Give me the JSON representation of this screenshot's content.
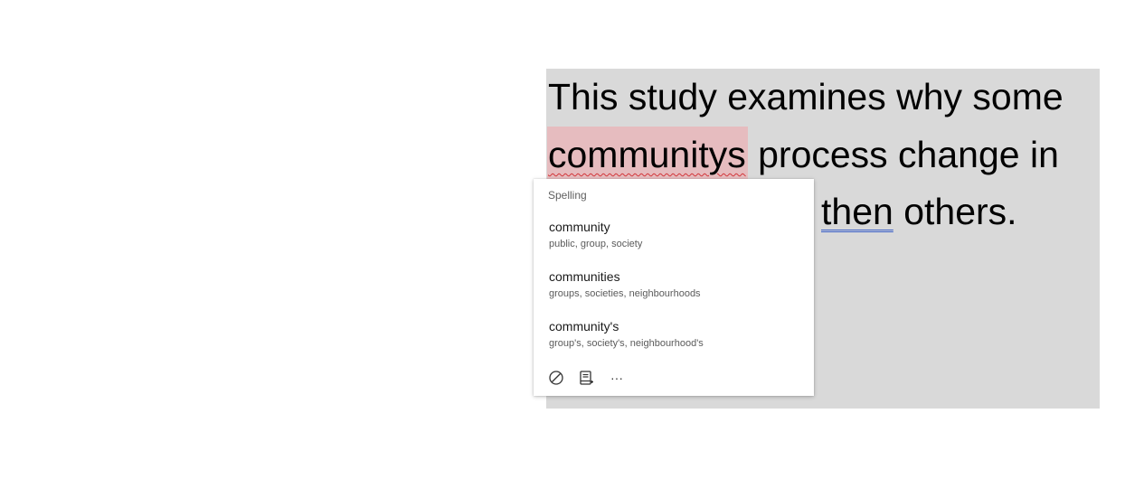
{
  "document": {
    "line1": "This study examines why some",
    "misspelled_word": "communitys",
    "line2_rest": " process change in",
    "line3_grammar_word": "then",
    "line3_rest": " others."
  },
  "popup": {
    "header": "Spelling",
    "suggestions": [
      {
        "word": "community",
        "synonyms": "public, group, society"
      },
      {
        "word": "communities",
        "synonyms": "groups, societies, neighbourhoods"
      },
      {
        "word": "community's",
        "synonyms": "group's, society's, neighbourhood's"
      }
    ],
    "more_label": "···"
  },
  "icons": [
    "ignore-icon",
    "add-to-dictionary-icon",
    "more-options-icon"
  ],
  "colors": {
    "doc_background": "#d9d9d9",
    "misspelled_highlight": "#e6bcbf",
    "spelling_underline": "#d13438",
    "grammar_underline": "#3a5fc8"
  }
}
